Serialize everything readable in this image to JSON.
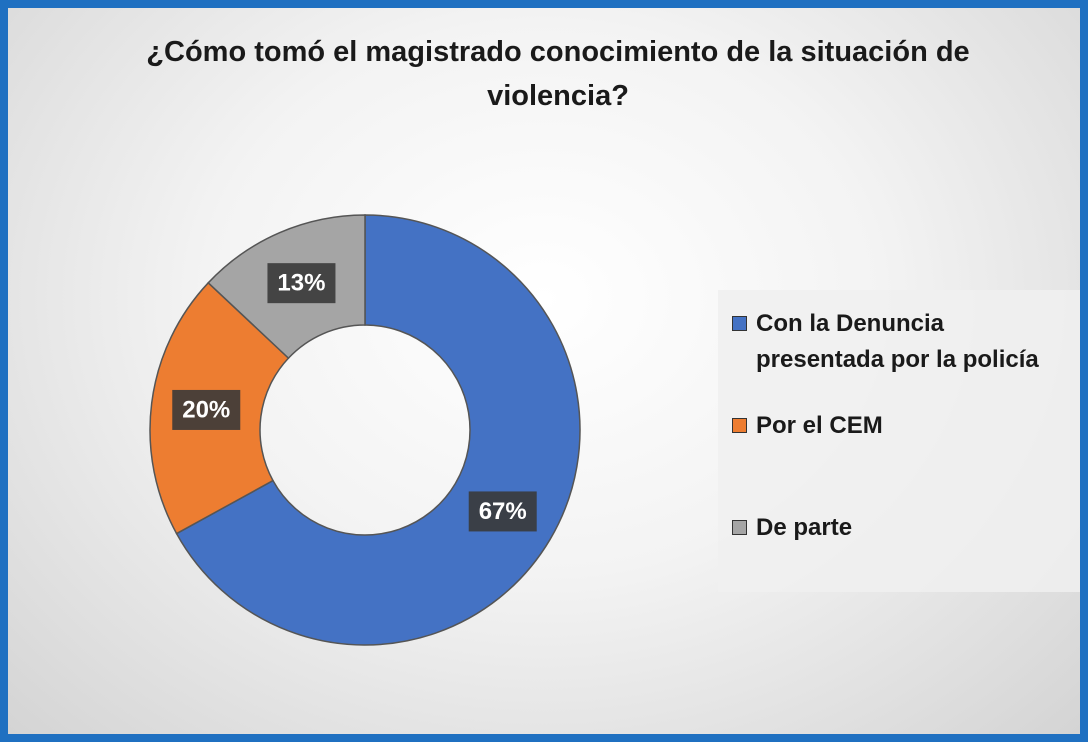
{
  "chart_data": {
    "type": "donut",
    "title": "¿Cómo tomó el magistrado conocimiento de la situación de violencia?",
    "categories": [
      "Con la Denuncia presentada por la policía",
      "Por el CEM",
      "De parte"
    ],
    "values": [
      67,
      20,
      13
    ],
    "value_labels": [
      "67%",
      "20%",
      "13%"
    ],
    "colors": [
      "#4472c4",
      "#ed7d31",
      "#a5a5a5"
    ],
    "legend": "right"
  }
}
